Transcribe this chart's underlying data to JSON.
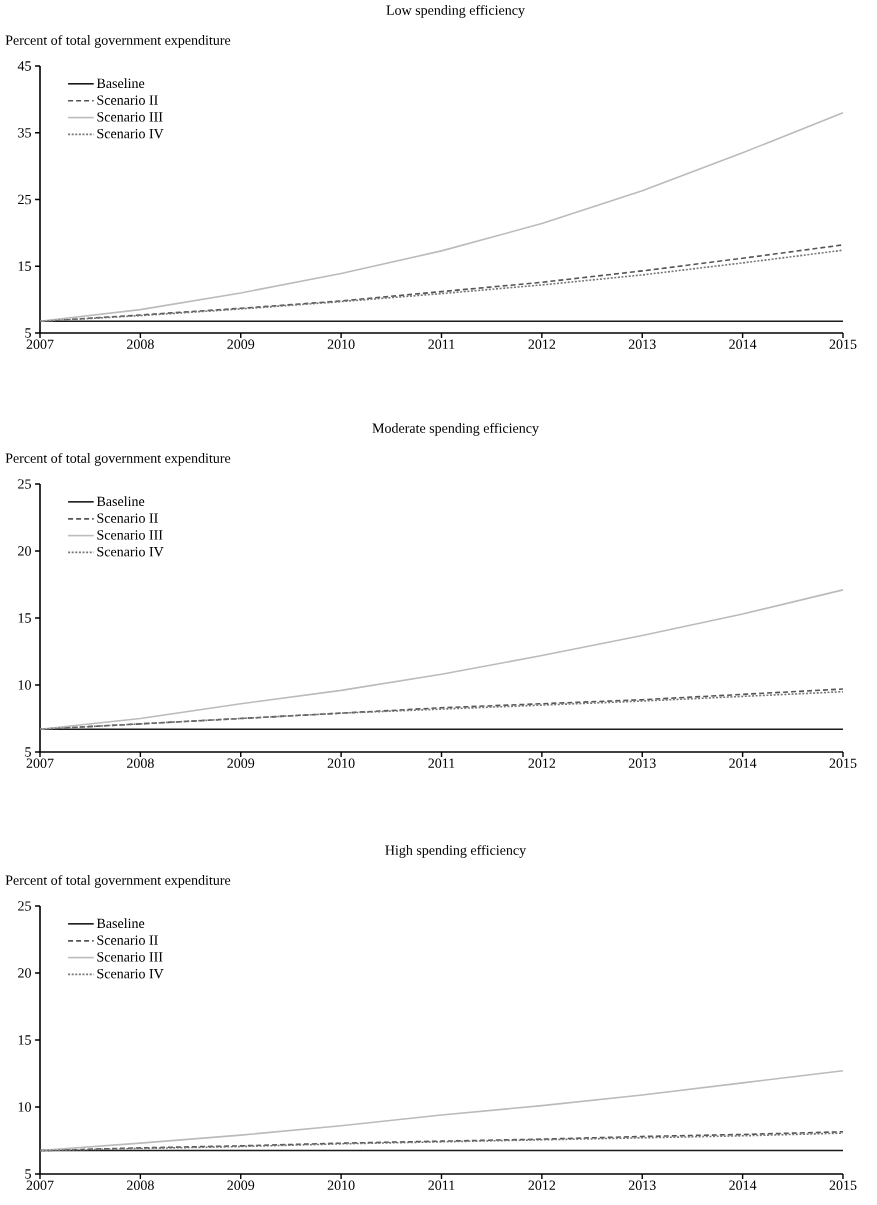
{
  "chart_data": [
    {
      "type": "line",
      "title": "Low spending efficiency",
      "ylabel": "Percent of total government expenditure",
      "x": [
        2007,
        2008,
        2009,
        2010,
        2011,
        2012,
        2013,
        2014,
        2015
      ],
      "xlim": [
        2007,
        2015
      ],
      "ylim": [
        5,
        45
      ],
      "xticks": [
        2007,
        2008,
        2009,
        2010,
        2011,
        2012,
        2013,
        2014,
        2015
      ],
      "yticks": [
        5,
        15,
        25,
        35,
        45
      ],
      "legend": "top left",
      "series": [
        {
          "name": "Baseline",
          "color": "#1a1a1a",
          "line_style": "solid",
          "values": [
            6.75,
            6.75,
            6.75,
            6.75,
            6.75,
            6.75,
            6.75,
            6.75,
            6.75
          ]
        },
        {
          "name": "Scenario II",
          "color": "#555555",
          "line_style": "dashed",
          "values": [
            6.75,
            7.7,
            8.7,
            9.8,
            11.2,
            12.6,
            14.3,
            16.2,
            18.2
          ]
        },
        {
          "name": "Scenario III",
          "color": "#bbbbbb",
          "line_style": "solid",
          "values": [
            6.75,
            8.5,
            11.0,
            13.9,
            17.3,
            21.4,
            26.3,
            32.0,
            38.0
          ]
        },
        {
          "name": "Scenario IV",
          "color": "#777777",
          "line_style": "dotted",
          "values": [
            6.75,
            7.6,
            8.6,
            9.7,
            10.9,
            12.2,
            13.7,
            15.5,
            17.4
          ]
        }
      ]
    },
    {
      "type": "line",
      "title": "Moderate spending efficiency",
      "ylabel": "Percent of total government expenditure",
      "x": [
        2007,
        2008,
        2009,
        2010,
        2011,
        2012,
        2013,
        2014,
        2015
      ],
      "xlim": [
        2007,
        2015
      ],
      "ylim": [
        5,
        25
      ],
      "xticks": [
        2007,
        2008,
        2009,
        2010,
        2011,
        2012,
        2013,
        2014,
        2015
      ],
      "yticks": [
        5,
        10,
        15,
        20,
        25
      ],
      "legend": "top left",
      "series": [
        {
          "name": "Baseline",
          "color": "#1a1a1a",
          "line_style": "solid",
          "values": [
            6.7,
            6.7,
            6.7,
            6.7,
            6.7,
            6.7,
            6.7,
            6.7,
            6.7
          ]
        },
        {
          "name": "Scenario II",
          "color": "#555555",
          "line_style": "dashed",
          "values": [
            6.7,
            7.1,
            7.5,
            7.9,
            8.3,
            8.6,
            8.9,
            9.3,
            9.7
          ]
        },
        {
          "name": "Scenario III",
          "color": "#bbbbbb",
          "line_style": "solid",
          "values": [
            6.7,
            7.5,
            8.6,
            9.6,
            10.8,
            12.2,
            13.7,
            15.3,
            17.1
          ]
        },
        {
          "name": "Scenario IV",
          "color": "#777777",
          "line_style": "dotted",
          "values": [
            6.7,
            7.1,
            7.5,
            7.9,
            8.2,
            8.5,
            8.8,
            9.15,
            9.5
          ]
        }
      ]
    },
    {
      "type": "line",
      "title": "High spending efficiency",
      "ylabel": "Percent of total government expenditure",
      "x": [
        2007,
        2008,
        2009,
        2010,
        2011,
        2012,
        2013,
        2014,
        2015
      ],
      "xlim": [
        2007,
        2015
      ],
      "ylim": [
        5,
        25
      ],
      "xticks": [
        2007,
        2008,
        2009,
        2010,
        2011,
        2012,
        2013,
        2014,
        2015
      ],
      "yticks": [
        5,
        10,
        15,
        20,
        25
      ],
      "legend": "top left",
      "series": [
        {
          "name": "Baseline",
          "color": "#1a1a1a",
          "line_style": "solid",
          "values": [
            6.75,
            6.75,
            6.75,
            6.75,
            6.75,
            6.75,
            6.75,
            6.75,
            6.75
          ]
        },
        {
          "name": "Scenario II",
          "color": "#555555",
          "line_style": "dashed",
          "values": [
            6.75,
            6.95,
            7.1,
            7.3,
            7.45,
            7.6,
            7.8,
            7.95,
            8.15
          ]
        },
        {
          "name": "Scenario III",
          "color": "#bbbbbb",
          "line_style": "solid",
          "values": [
            6.75,
            7.3,
            7.9,
            8.6,
            9.4,
            10.1,
            10.9,
            11.8,
            12.7
          ]
        },
        {
          "name": "Scenario IV",
          "color": "#777777",
          "line_style": "dotted",
          "values": [
            6.75,
            6.9,
            7.05,
            7.25,
            7.4,
            7.55,
            7.7,
            7.85,
            8.05
          ]
        }
      ]
    }
  ]
}
